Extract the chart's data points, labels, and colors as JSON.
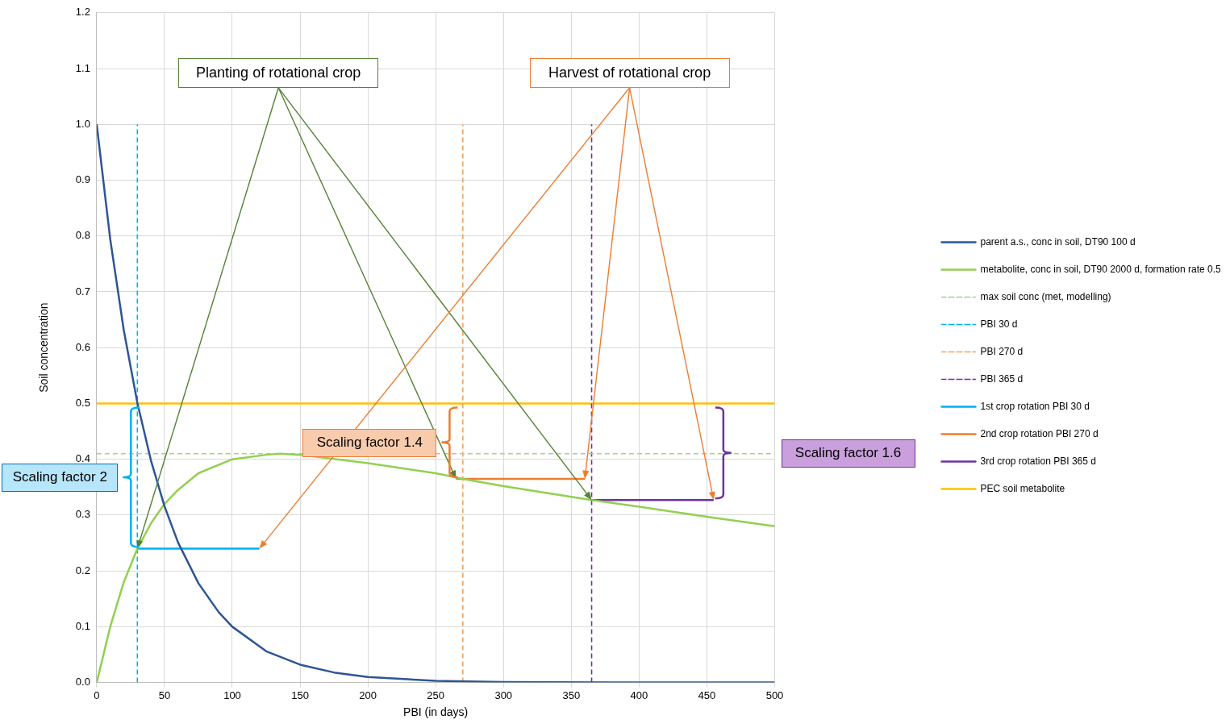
{
  "chart_data": {
    "type": "line",
    "xlabel": "PBI (in days)",
    "ylabel": "Soil concentration",
    "xlim": [
      0,
      500
    ],
    "xticks": [
      0,
      50,
      100,
      150,
      200,
      250,
      300,
      350,
      400,
      450,
      500
    ],
    "ylim": [
      0,
      1.2
    ],
    "yticks": [
      {
        "value": 0,
        "label": "0.0"
      },
      {
        "value": 0.1,
        "label": "0.1"
      },
      {
        "value": 0.2,
        "label": "0.2"
      },
      {
        "value": 0.3,
        "label": "0.3"
      },
      {
        "value": 0.4,
        "label": "0.4"
      },
      {
        "value": 0.5,
        "label": "0.5"
      },
      {
        "value": 0.6,
        "label": "0.6"
      },
      {
        "value": 0.7,
        "label": "0.7"
      },
      {
        "value": 0.8,
        "label": "0.8"
      },
      {
        "value": 0.9,
        "label": "0.9"
      },
      {
        "value": 1,
        "label": "1.0"
      },
      {
        "value": 1.1,
        "label": "1.1"
      },
      {
        "value": 1.2,
        "label": "1.2"
      }
    ],
    "grid": true,
    "legend": "right",
    "marker": "none",
    "annotations": [
      "Planting of rotational crop",
      "Harvest of rotational crop",
      "Scaling factor 2",
      "Scaling factor 1.4",
      "Scaling factor 1.6"
    ],
    "series": [
      {
        "name": "parent a.s., conc in soil, DT90 100 d",
        "color": "#2e5597",
        "x": [
          0,
          10,
          20,
          30,
          40,
          50,
          60,
          75,
          90,
          100,
          125,
          150,
          175,
          200,
          250,
          300,
          400,
          500
        ],
        "values": [
          1,
          0.794,
          0.631,
          0.501,
          0.398,
          0.316,
          0.251,
          0.178,
          0.126,
          0.1,
          0.056,
          0.032,
          0.018,
          0.01,
          0.003,
          0.001,
          0,
          0
        ]
      },
      {
        "name": "metabolite, conc in soil, DT90 2000 d, formation rate 0.5",
        "color": "#92d050",
        "x": [
          0,
          10,
          20,
          30,
          40,
          50,
          60,
          75,
          100,
          125,
          135,
          150,
          200,
          250,
          270,
          300,
          365,
          400,
          450,
          500
        ],
        "values": [
          0,
          0.1,
          0.18,
          0.24,
          0.285,
          0.32,
          0.345,
          0.375,
          0.4,
          0.408,
          0.41,
          0.408,
          0.393,
          0.375,
          0.365,
          0.352,
          0.327,
          0.315,
          0.297,
          0.28
        ]
      },
      {
        "name": "max soil conc (met, modelling)",
        "color": "#a9d18e",
        "line_style": "dashed",
        "x": [
          0,
          500
        ],
        "values": [
          0.41,
          0.41
        ]
      },
      {
        "name": "PBI 30 d",
        "color": "#00b0f0",
        "line_style": "dashed",
        "x": [
          30,
          30
        ],
        "values": [
          0,
          1
        ]
      },
      {
        "name": "PBI 270 d",
        "color": "#f4a460",
        "line_style": "dashed",
        "x": [
          270,
          270
        ],
        "values": [
          0,
          1
        ]
      },
      {
        "name": "PBI 365 d",
        "color": "#7030a0",
        "line_style": "dashed",
        "x": [
          365,
          365
        ],
        "values": [
          0,
          1
        ]
      },
      {
        "name": "1st crop rotation PBI 30 d",
        "color": "#00b0f0",
        "x": [
          30,
          120
        ],
        "values": [
          0.24,
          0.24
        ]
      },
      {
        "name": "2nd crop rotation PBI 270 d",
        "color": "#ed7d31",
        "x": [
          265,
          360
        ],
        "values": [
          0.365,
          0.365
        ]
      },
      {
        "name": "3rd crop rotation PBI 365 d",
        "color": "#7030a0",
        "x": [
          365,
          455
        ],
        "values": [
          0.327,
          0.327
        ]
      },
      {
        "name": "PEC soil metabolite",
        "color": "#ffc000",
        "x": [
          0,
          500
        ],
        "values": [
          0.5,
          0.5
        ]
      }
    ]
  }
}
